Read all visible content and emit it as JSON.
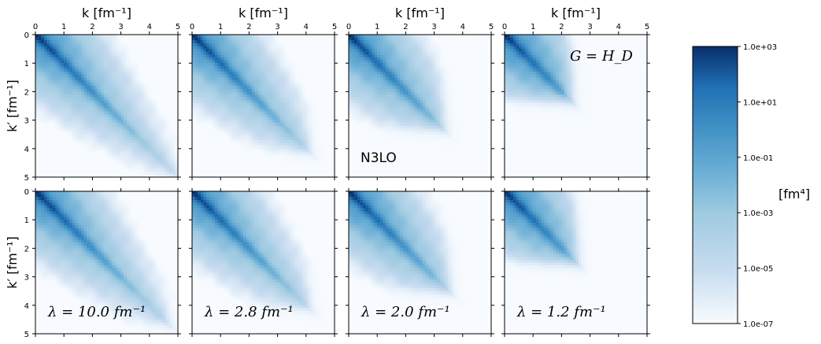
{
  "chart_data": {
    "type": "heatmap",
    "x_axis_label": "k [fm⁻¹]",
    "y_axis_label": "k′ [fm⁻¹]",
    "x_ticks": [
      "0",
      "1",
      "2",
      "3",
      "4",
      "5"
    ],
    "y_ticks": [
      "0",
      "1",
      "2",
      "3",
      "4",
      "5"
    ],
    "xlim": [
      0,
      5
    ],
    "ylim": [
      5,
      0
    ],
    "scale": "log",
    "colormap": "Blues",
    "panels": [
      {
        "row": 0,
        "col": 0,
        "extent": 5.0,
        "annotation": ""
      },
      {
        "row": 0,
        "col": 1,
        "extent": 4.1,
        "annotation": ""
      },
      {
        "row": 0,
        "col": 2,
        "extent": 3.3,
        "annotation": "N3LO"
      },
      {
        "row": 0,
        "col": 3,
        "extent": 2.3,
        "annotation": "G = H_D"
      },
      {
        "row": 1,
        "col": 0,
        "extent": 4.7,
        "annotation": "λ = 10.0 fm⁻¹"
      },
      {
        "row": 1,
        "col": 1,
        "extent": 4.1,
        "annotation": "λ = 2.8 fm⁻¹"
      },
      {
        "row": 1,
        "col": 2,
        "extent": 3.5,
        "annotation": "λ = 2.0 fm⁻¹"
      },
      {
        "row": 1,
        "col": 3,
        "extent": 2.5,
        "annotation": "λ = 1.2 fm⁻¹"
      }
    ],
    "colorbar": {
      "label": "[fm⁴]",
      "ticks": [
        "1.0e+03",
        "1.0e+01",
        "1.0e-01",
        "1.0e-03",
        "1.0e-05",
        "1.0e-07"
      ],
      "range": [
        1e-07,
        1000.0
      ]
    }
  },
  "colors": {
    "dark": "#08306b",
    "mid": "#4292c6",
    "light": "#f7fbff"
  }
}
